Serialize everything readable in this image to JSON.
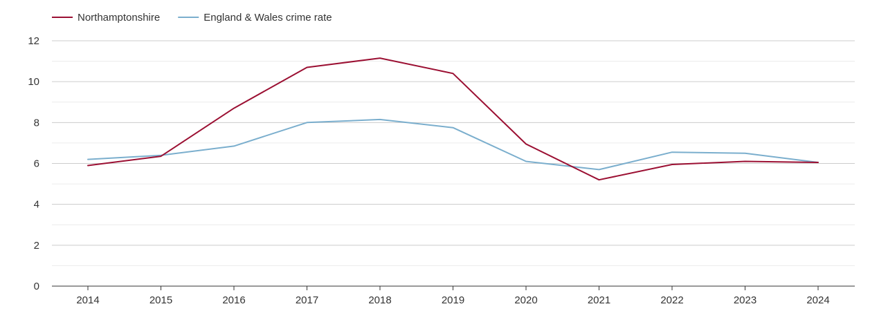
{
  "chart_data": {
    "type": "line",
    "title": "",
    "xlabel": "",
    "ylabel": "",
    "x": [
      "2014",
      "2015",
      "2016",
      "2017",
      "2018",
      "2019",
      "2020",
      "2021",
      "2022",
      "2023",
      "2024"
    ],
    "ylim": [
      0,
      12
    ],
    "yticks": [
      0,
      2,
      4,
      6,
      8,
      10,
      12
    ],
    "grid": true,
    "legend_position": "top-left",
    "series": [
      {
        "name": "Northamptonshire",
        "color": "#9b0f32",
        "values": [
          5.9,
          6.35,
          8.7,
          10.7,
          11.15,
          10.4,
          6.95,
          5.2,
          5.95,
          6.1,
          6.05
        ]
      },
      {
        "name": "England & Wales crime rate",
        "color": "#7aaecd",
        "values": [
          6.2,
          6.4,
          6.85,
          8.0,
          8.15,
          7.75,
          6.1,
          5.7,
          6.55,
          6.5,
          6.05
        ]
      }
    ]
  }
}
